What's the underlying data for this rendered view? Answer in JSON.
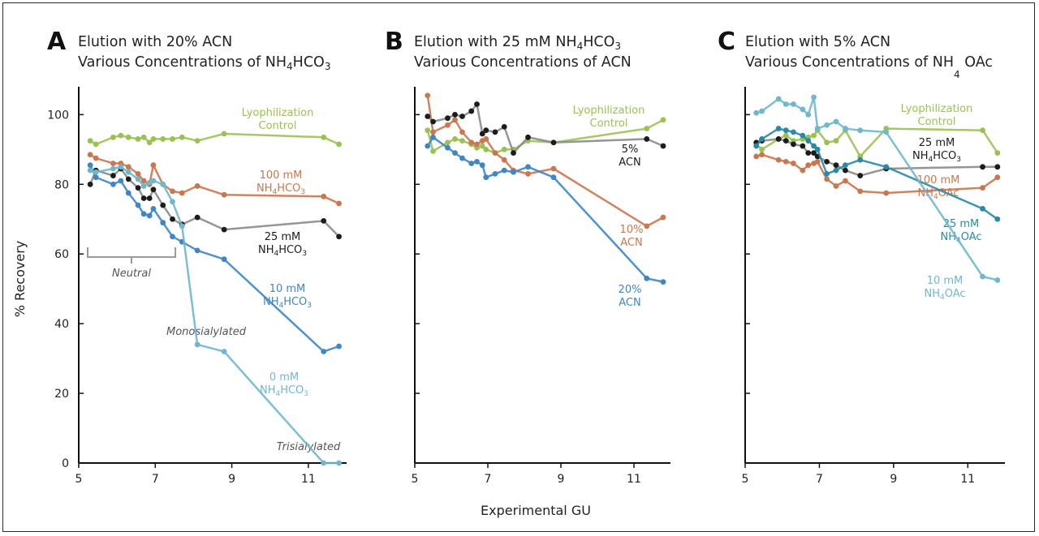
{
  "chart_data": {
    "type": "line",
    "shared": {
      "xlabel": "Experimental GU",
      "ylabel": "% Recovery",
      "xticks": [
        5,
        7,
        9,
        11
      ],
      "yticks": [
        0,
        20,
        40,
        60,
        80,
        100
      ],
      "xlim": [
        5,
        12
      ],
      "ylim": [
        0,
        108
      ]
    },
    "colors": {
      "green": "#9bc153",
      "orange": "#c8774f",
      "black": "#1c1c1c",
      "gray": "#8a8a8a",
      "blue": "#3f86c4",
      "teal": "#6fb8cc",
      "tealDark": "#2a8aa6"
    },
    "panels": [
      {
        "id": "A",
        "letter": "A",
        "title_line1": "Elution with 20% ACN",
        "title_line2_main": "Various Concentrations of NH",
        "title_line2_sub1": "4",
        "title_line2_mid": "HCO",
        "title_line2_sub2": "3",
        "series": [
          {
            "key": "lyo",
            "color": "green",
            "label_lines": [
              "Lyophilization",
              "Control"
            ],
            "x": [
              5.3,
              5.45,
              5.9,
              6.1,
              6.3,
              6.55,
              6.7,
              6.85,
              6.95,
              7.2,
              7.45,
              7.7,
              8.1,
              8.8,
              11.4,
              11.8
            ],
            "y": [
              92.5,
              91.5,
              93.5,
              94,
              93.5,
              93,
              93.5,
              92,
              93,
              93,
              93,
              93.5,
              92.5,
              94.5,
              93.5,
              91.5
            ]
          },
          {
            "key": "c100",
            "color": "orange",
            "label_lines": [
              "100 mM",
              "NH4HCO3"
            ],
            "x": [
              5.3,
              5.45,
              5.9,
              6.1,
              6.3,
              6.55,
              6.7,
              6.85,
              6.95,
              7.2,
              7.45,
              7.7,
              8.1,
              8.8,
              11.4,
              11.8
            ],
            "y": [
              88.5,
              87.5,
              86,
              86,
              85,
              83,
              81,
              80,
              85.5,
              80,
              78,
              77.5,
              79.5,
              77,
              76.5,
              74.5
            ]
          },
          {
            "key": "c25",
            "color": "black",
            "line_color": "gray",
            "label_lines": [
              "25 mM",
              "NH4HCO3"
            ],
            "x": [
              5.3,
              5.45,
              5.9,
              6.1,
              6.3,
              6.55,
              6.7,
              6.85,
              6.95,
              7.2,
              7.45,
              7.7,
              8.1,
              8.8,
              11.4,
              11.8
            ],
            "y": [
              80,
              84,
              82.5,
              84.5,
              81.5,
              79,
              76,
              76,
              78.5,
              74,
              70,
              68.5,
              70.5,
              67,
              69.5,
              65
            ]
          },
          {
            "key": "c10",
            "color": "blue",
            "label_lines": [
              "10 mM",
              "NH4HCO3"
            ],
            "x": [
              5.3,
              5.45,
              5.9,
              6.1,
              6.3,
              6.55,
              6.7,
              6.85,
              6.95,
              7.2,
              7.45,
              7.7,
              8.1,
              8.8,
              11.4,
              11.8
            ],
            "y": [
              85.5,
              82,
              80,
              81,
              77.5,
              74,
              71.5,
              71,
              73,
              69,
              65,
              63.5,
              61,
              58.5,
              32,
              33.5
            ]
          },
          {
            "key": "c0",
            "color": "teal",
            "label_lines": [
              "0 mM",
              "NH4HCO3"
            ],
            "x": [
              5.3,
              5.45,
              5.9,
              6.1,
              6.3,
              6.55,
              6.7,
              6.85,
              6.95,
              7.2,
              7.45,
              7.7,
              8.1,
              8.8,
              11.4,
              11.8
            ],
            "y": [
              84,
              83.5,
              84.5,
              85,
              83.5,
              81.5,
              79.5,
              80.5,
              81,
              80,
              75,
              68,
              34,
              32,
              0,
              0
            ]
          }
        ],
        "annotations": [
          "Neutral",
          "Monosialylated",
          "Trisialylated"
        ]
      },
      {
        "id": "B",
        "letter": "B",
        "title_line1_main": "Elution with 25 mM NH",
        "title_line1_sub1": "4",
        "title_line1_mid": "HCO",
        "title_line1_sub2": "3",
        "title_line2": "Various Concentrations of ACN",
        "series": [
          {
            "key": "lyo",
            "color": "green",
            "label_lines": [
              "Lyophilization",
              "Control"
            ],
            "x": [
              5.35,
              5.5,
              5.9,
              6.1,
              6.3,
              6.55,
              6.7,
              6.85,
              6.95,
              7.2,
              7.45,
              7.7,
              8.1,
              8.8,
              11.35,
              11.8
            ],
            "y": [
              95.5,
              89.5,
              92,
              93,
              92.5,
              91.5,
              90.5,
              91,
              90,
              89,
              90,
              90,
              92.5,
              92,
              96,
              98.5
            ]
          },
          {
            "key": "a10",
            "color": "orange",
            "label_lines": [
              "10%",
              "ACN"
            ],
            "x": [
              5.35,
              5.5,
              5.9,
              6.1,
              6.3,
              6.55,
              6.7,
              6.85,
              6.95,
              7.2,
              7.45,
              7.7,
              8.1,
              8.8,
              11.35,
              11.8
            ],
            "y": [
              105.5,
              95,
              97,
              98.5,
              95,
              92,
              91.5,
              92.5,
              93,
              89,
              87,
              84,
              83,
              84.5,
              68,
              70.5
            ]
          },
          {
            "key": "a5",
            "color": "black",
            "line_color": "gray",
            "label_lines": [
              "5%",
              "ACN"
            ],
            "x": [
              5.35,
              5.5,
              5.9,
              6.1,
              6.3,
              6.55,
              6.7,
              6.85,
              6.95,
              7.2,
              7.45,
              7.7,
              8.1,
              8.8,
              11.35,
              11.8
            ],
            "y": [
              99.5,
              98,
              99,
              100,
              99.5,
              101,
              103,
              94.5,
              95.5,
              95,
              96.5,
              89,
              93.5,
              92,
              93,
              91
            ]
          },
          {
            "key": "a20",
            "color": "blue",
            "label_lines": [
              "20%",
              "ACN"
            ],
            "x": [
              5.35,
              5.5,
              5.9,
              6.1,
              6.3,
              6.55,
              6.7,
              6.85,
              6.95,
              7.2,
              7.45,
              7.7,
              8.1,
              8.8,
              11.35,
              11.8
            ],
            "y": [
              91,
              93.5,
              90.5,
              89,
              87.5,
              86,
              86.5,
              85.5,
              82,
              83,
              84,
              83.5,
              85,
              82,
              53,
              52
            ]
          }
        ]
      },
      {
        "id": "C",
        "letter": "C",
        "title_line1": "Elution with 5% ACN",
        "title_line2_main": "Various Concentrations of NH",
        "title_line2_sub1": "4",
        "title_line2_mid": " OAc",
        "series": [
          {
            "key": "lyo",
            "color": "green",
            "label_lines": [
              "Lyophilization",
              "Control"
            ],
            "x": [
              5.3,
              5.45,
              5.9,
              6.1,
              6.3,
              6.55,
              6.7,
              6.85,
              6.95,
              7.2,
              7.45,
              7.7,
              8.1,
              8.8,
              11.4,
              11.8
            ],
            "y": [
              91.5,
              90,
              93,
              94,
              92.5,
              93,
              93.5,
              94,
              95.5,
              92,
              92.5,
              95.5,
              88,
              96,
              95.5,
              89
            ]
          },
          {
            "key": "n25",
            "color": "black",
            "line_color": "gray",
            "label_lines": [
              "25 mM",
              "NH4HCO3"
            ],
            "x": [
              5.3,
              5.45,
              5.9,
              6.1,
              6.3,
              6.55,
              6.7,
              6.85,
              6.95,
              7.2,
              7.45,
              7.7,
              8.1,
              8.8,
              11.4,
              11.8
            ],
            "y": [
              92,
              92.5,
              93,
              92.5,
              91.5,
              91,
              89,
              89,
              88,
              86.5,
              85.5,
              84,
              82.5,
              84.5,
              85,
              85
            ]
          },
          {
            "key": "n100",
            "color": "orange",
            "label_lines": [
              "100 mM",
              "NH4OAc"
            ],
            "x": [
              5.3,
              5.45,
              5.9,
              6.1,
              6.3,
              6.55,
              6.7,
              6.85,
              6.95,
              7.2,
              7.45,
              7.7,
              8.1,
              8.8,
              11.4,
              11.8
            ],
            "y": [
              88,
              88.5,
              87,
              86.5,
              86,
              84,
              85.5,
              86,
              86.5,
              81.5,
              79.5,
              81,
              78,
              77.5,
              79,
              82
            ]
          },
          {
            "key": "n25b",
            "color": "tealDark",
            "label_lines": [
              "25 mM",
              "NH4OAc"
            ],
            "x": [
              5.3,
              5.45,
              5.9,
              6.1,
              6.3,
              6.55,
              6.7,
              6.85,
              6.95,
              7.2,
              7.45,
              7.7,
              8.1,
              8.8,
              11.4,
              11.8
            ],
            "y": [
              91,
              93,
              96,
              95.5,
              95,
              94,
              92.5,
              91,
              90,
              83,
              84,
              85.5,
              87,
              85,
              73,
              70
            ]
          },
          {
            "key": "n10",
            "color": "teal",
            "label_lines": [
              "10 mM",
              "NH4OAc"
            ],
            "x": [
              5.3,
              5.45,
              5.9,
              6.1,
              6.3,
              6.55,
              6.7,
              6.85,
              6.95,
              7.2,
              7.45,
              7.7,
              8.1,
              8.8,
              11.4,
              11.8
            ],
            "y": [
              100.5,
              101,
              104.5,
              103,
              103,
              101.5,
              100,
              105,
              96,
              97,
              98,
              96,
              95.5,
              95,
              53.5,
              52.5
            ]
          }
        ]
      }
    ]
  }
}
